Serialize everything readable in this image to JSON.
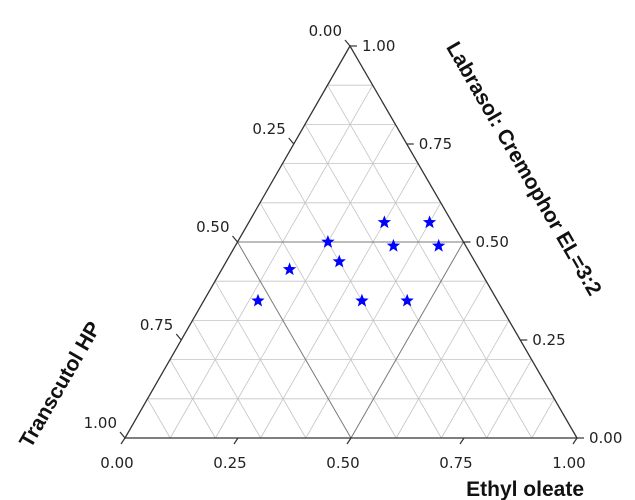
{
  "chart_data": {
    "type": "scatter",
    "subtype": "ternary",
    "axes": {
      "right": {
        "label": "Labrasol: Cremophor EL=3:2",
        "ticks": [
          "1.00",
          "0.75",
          "0.50",
          "0.25",
          "0.00"
        ]
      },
      "left": {
        "label": "Transcutol HP",
        "ticks": [
          "0.00",
          "0.25",
          "0.50",
          "0.75",
          "1.00"
        ]
      },
      "bottom": {
        "label": "Ethyl oleate",
        "ticks": [
          "0.00",
          "0.25",
          "0.50",
          "0.75",
          "1.00"
        ]
      }
    },
    "range": [
      0,
      1
    ],
    "grid": true,
    "grid_step": 0.1,
    "marker": "star",
    "marker_color": "#0000ff",
    "points": [
      {
        "ethyl_oleate": 0.2,
        "labrasol_cremophor": 0.5,
        "transcutol_hp": 0.3
      },
      {
        "ethyl_oleate": 0.3,
        "labrasol_cremophor": 0.55,
        "transcutol_hp": 0.15
      },
      {
        "ethyl_oleate": 0.4,
        "labrasol_cremophor": 0.55,
        "transcutol_hp": 0.05
      },
      {
        "ethyl_oleate": 0.25,
        "labrasol_cremophor": 0.45,
        "transcutol_hp": 0.3
      },
      {
        "ethyl_oleate": 0.35,
        "labrasol_cremophor": 0.49,
        "transcutol_hp": 0.16
      },
      {
        "ethyl_oleate": 0.45,
        "labrasol_cremophor": 0.49,
        "transcutol_hp": 0.06
      },
      {
        "ethyl_oleate": 0.15,
        "labrasol_cremophor": 0.43,
        "transcutol_hp": 0.42
      },
      {
        "ethyl_oleate": 0.12,
        "labrasol_cremophor": 0.35,
        "transcutol_hp": 0.53
      },
      {
        "ethyl_oleate": 0.35,
        "labrasol_cremophor": 0.35,
        "transcutol_hp": 0.3
      },
      {
        "ethyl_oleate": 0.45,
        "labrasol_cremophor": 0.35,
        "transcutol_hp": 0.2
      }
    ]
  }
}
